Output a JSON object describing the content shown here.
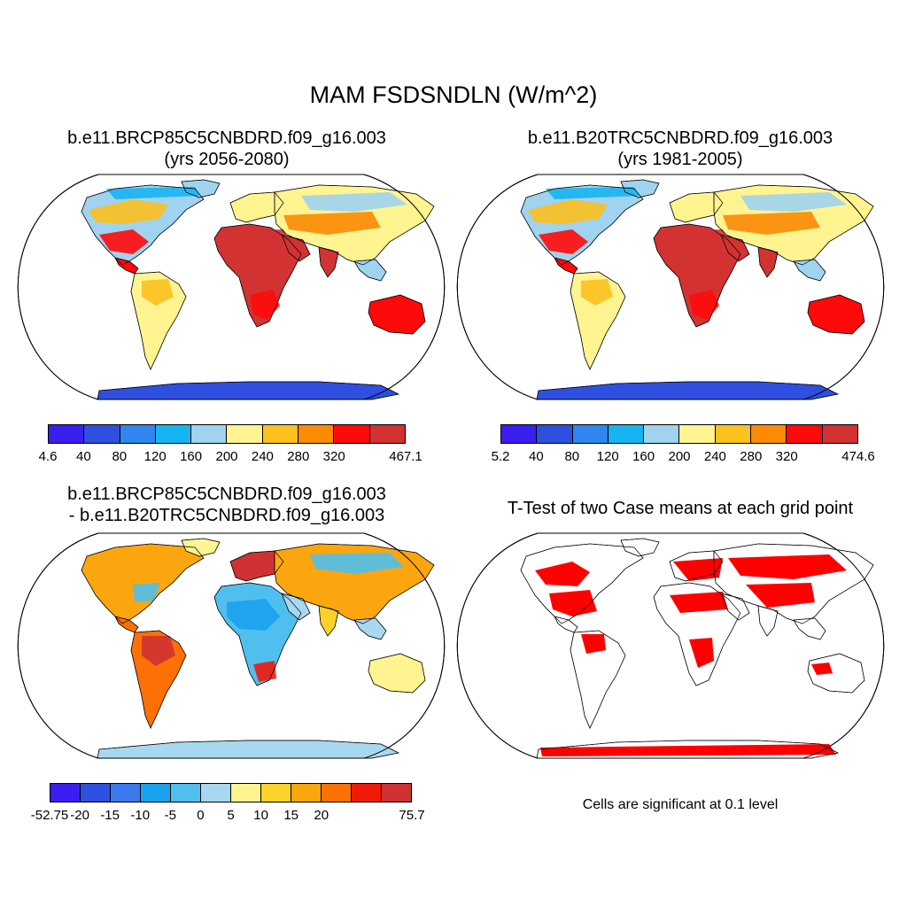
{
  "title": "MAM FSDSNDLN (W/m^2)",
  "panels": [
    {
      "id": "p1",
      "line1": "b.e11.BRCP85C5CNBDRD.f09_g16.003",
      "line2": "(yrs 2056-2080)"
    },
    {
      "id": "p2",
      "line1": "b.e11.B20TRC5CNBDRD.f09_g16.003",
      "line2": "(yrs 1981-2005)"
    },
    {
      "id": "p3",
      "line1": "b.e11.BRCP85C5CNBDRD.f09_g16.003",
      "line2": "- b.e11.B20TRC5CNBDRD.f09_g16.003"
    },
    {
      "id": "p4",
      "line1": "T-Test of two Case means at each grid point",
      "line2": ""
    }
  ],
  "colorbars": [
    {
      "id": "cb1",
      "colors": [
        "#3b1ff0",
        "#2f4fe0",
        "#2f86ee",
        "#17b4f2",
        "#9fd3f0",
        "#fff490",
        "#fcc01f",
        "#fc8a05",
        "#ff0a0a",
        "#d23232"
      ],
      "labels": [
        "4.6",
        "40",
        "80",
        "120",
        "160",
        "200",
        "240",
        "280",
        "320",
        "467.1"
      ]
    },
    {
      "id": "cb2",
      "colors": [
        "#3b1ff0",
        "#2f4fe0",
        "#2f86ee",
        "#17b4f2",
        "#9fd3f0",
        "#fff490",
        "#fcc01f",
        "#fc8a05",
        "#ff0a0a",
        "#d23232"
      ],
      "labels": [
        "5.2",
        "40",
        "80",
        "120",
        "160",
        "200",
        "240",
        "280",
        "320",
        "474.6"
      ]
    },
    {
      "id": "cb3",
      "colors": [
        "#3b1ff0",
        "#2f4fe0",
        "#3a7aee",
        "#1aa2ef",
        "#4fc0ee",
        "#a8d8f0",
        "#fff490",
        "#fcd12a",
        "#fca60f",
        "#fc7005",
        "#f01a0a",
        "#cf3232"
      ],
      "labels": [
        "-52.75",
        "-20",
        "-15",
        "-10",
        "-5",
        "0",
        "5",
        "10",
        "15",
        "20",
        "75.7"
      ]
    }
  ],
  "significance_note": "Cells are significant at 0.1 level"
}
